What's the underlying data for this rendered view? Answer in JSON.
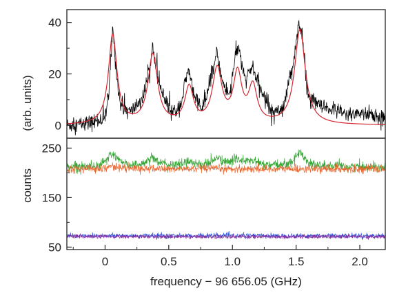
{
  "chart_data": [
    {
      "type": "line",
      "panel": "top",
      "ylabel": "(arb. units)",
      "xlim": [
        -0.3,
        2.2
      ],
      "ylim": [
        -5,
        45
      ],
      "yticks": [
        0,
        20,
        40
      ],
      "grid": false,
      "series": [
        {
          "role": "measured spectrum (noisy)",
          "color": "#000000",
          "x": [
            -0.3,
            -0.1,
            0.0,
            0.03,
            0.06,
            0.09,
            0.12,
            0.2,
            0.3,
            0.35,
            0.38,
            0.42,
            0.5,
            0.55,
            0.6,
            0.63,
            0.66,
            0.7,
            0.75,
            0.8,
            0.85,
            0.88,
            0.92,
            0.98,
            1.02,
            1.05,
            1.1,
            1.13,
            1.16,
            1.2,
            1.3,
            1.4,
            1.48,
            1.52,
            1.55,
            1.6,
            1.7,
            1.8,
            1.9,
            2.0,
            2.1,
            2.2
          ],
          "y": [
            0,
            1,
            3,
            12,
            38,
            20,
            8,
            5,
            11,
            22,
            31,
            16,
            6,
            5,
            9,
            17,
            21,
            13,
            6,
            11,
            22,
            28,
            17,
            11,
            27,
            30,
            17,
            20,
            23,
            16,
            6,
            7,
            25,
            40,
            33,
            11,
            7,
            6,
            4,
            5,
            4,
            2
          ]
        },
        {
          "role": "fit",
          "color": "#d6242f",
          "peaks": [
            {
              "center": 0.06,
              "amplitude": 35,
              "hwhm": 0.04
            },
            {
              "center": 0.375,
              "amplitude": 27,
              "hwhm": 0.045
            },
            {
              "center": 0.66,
              "amplitude": 14,
              "hwhm": 0.04
            },
            {
              "center": 0.88,
              "amplitude": 21,
              "hwhm": 0.045
            },
            {
              "center": 1.04,
              "amplitude": 19,
              "hwhm": 0.04
            },
            {
              "center": 1.16,
              "amplitude": 14,
              "hwhm": 0.04
            },
            {
              "center": 1.53,
              "amplitude": 37,
              "hwhm": 0.05
            }
          ]
        }
      ]
    },
    {
      "type": "line",
      "panel": "bottom",
      "ylabel": "counts",
      "xlabel": "frequency − 96 656.05  (GHz)",
      "xlim": [
        -0.3,
        2.2
      ],
      "ylim": [
        45,
        270
      ],
      "yticks": [
        50,
        150,
        250
      ],
      "xticks": [
        0,
        0.5,
        1.0,
        1.5,
        2.0
      ],
      "xtick_labels": [
        "0",
        "0.5",
        "1.0",
        "1.5",
        "2.0"
      ],
      "grid": false,
      "series": [
        {
          "color": "#2ca02c",
          "baseline": 212,
          "noise": 5,
          "peaks": [
            {
              "center": 0.06,
              "amplitude": 25,
              "hwhm": 0.05
            },
            {
              "center": 0.375,
              "amplitude": 18,
              "hwhm": 0.05
            },
            {
              "center": 0.66,
              "amplitude": 10,
              "hwhm": 0.05
            },
            {
              "center": 0.88,
              "amplitude": 15,
              "hwhm": 0.05
            },
            {
              "center": 1.04,
              "amplitude": 14,
              "hwhm": 0.05
            },
            {
              "center": 1.16,
              "amplitude": 10,
              "hwhm": 0.05
            },
            {
              "center": 1.53,
              "amplitude": 28,
              "hwhm": 0.05
            }
          ]
        },
        {
          "color": "#e8622a",
          "baseline": 208,
          "noise": 4,
          "peaks": [
            {
              "center": 0.06,
              "amplitude": 5,
              "hwhm": 0.06
            }
          ]
        },
        {
          "color": "#2a4fd6",
          "baseline": 73,
          "noise": 2.5,
          "peaks": []
        },
        {
          "color": "#8a2ba0",
          "baseline": 71,
          "noise": 2,
          "peaks": []
        }
      ]
    }
  ]
}
